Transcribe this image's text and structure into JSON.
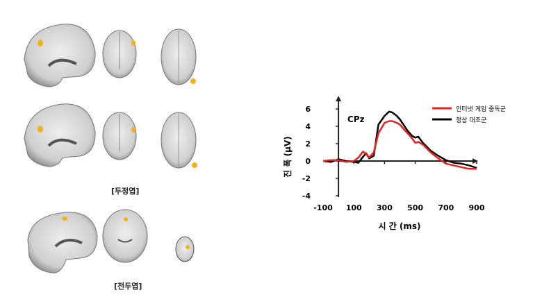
{
  "figure": {
    "left_panel": {
      "rows": [
        {
          "views": [
            "sagittal",
            "coronal-posterior",
            "axial"
          ],
          "highlight_color": "#f2b21c"
        },
        {
          "views": [
            "sagittal",
            "coronal-posterior",
            "axial"
          ],
          "highlight_color": "#f2b21c",
          "caption": "[두정엽]"
        },
        {
          "views": [
            "sagittal",
            "coronal",
            "axial-small"
          ],
          "highlight_color": "#f2b21c",
          "caption": "[전두엽]"
        }
      ]
    }
  },
  "chart_data": {
    "type": "line",
    "title": "CPz",
    "xlabel": "시 간 (ms)",
    "ylabel": "진 폭 (μV)",
    "xlim": [
      -100,
      900
    ],
    "ylim": [
      -4,
      6
    ],
    "xticks": [
      -100,
      100,
      300,
      500,
      700,
      900
    ],
    "yticks": [
      -4,
      -2,
      0,
      2,
      4,
      6
    ],
    "grid": false,
    "legend_position": "top-right",
    "x": [
      -100,
      -50,
      0,
      50,
      100,
      130,
      160,
      180,
      200,
      230,
      260,
      300,
      330,
      350,
      380,
      400,
      450,
      480,
      500,
      520,
      550,
      600,
      650,
      700,
      750,
      800,
      850,
      900
    ],
    "series": [
      {
        "name": "인터넷 게임 중독군",
        "color": "#e8211f",
        "values": [
          0,
          0.1,
          0.1,
          -0.1,
          0,
          0.4,
          1.1,
          0.8,
          0.4,
          1.0,
          3.2,
          4.4,
          4.6,
          4.6,
          4.4,
          4.2,
          3.2,
          2.6,
          2.1,
          2.2,
          1.9,
          1.0,
          0.3,
          -0.3,
          -0.5,
          -0.7,
          -0.9,
          -0.9
        ]
      },
      {
        "name": "정상 대조군",
        "color": "#000000",
        "values": [
          0,
          -0.1,
          0.2,
          0,
          -0.1,
          -0.2,
          0.5,
          0.9,
          0.3,
          0.6,
          4.2,
          5.2,
          5.7,
          5.6,
          5.2,
          4.8,
          3.5,
          2.9,
          2.7,
          2.8,
          2.1,
          1.2,
          0.6,
          0.1,
          -0.2,
          -0.3,
          -0.5,
          -0.8
        ]
      }
    ]
  }
}
